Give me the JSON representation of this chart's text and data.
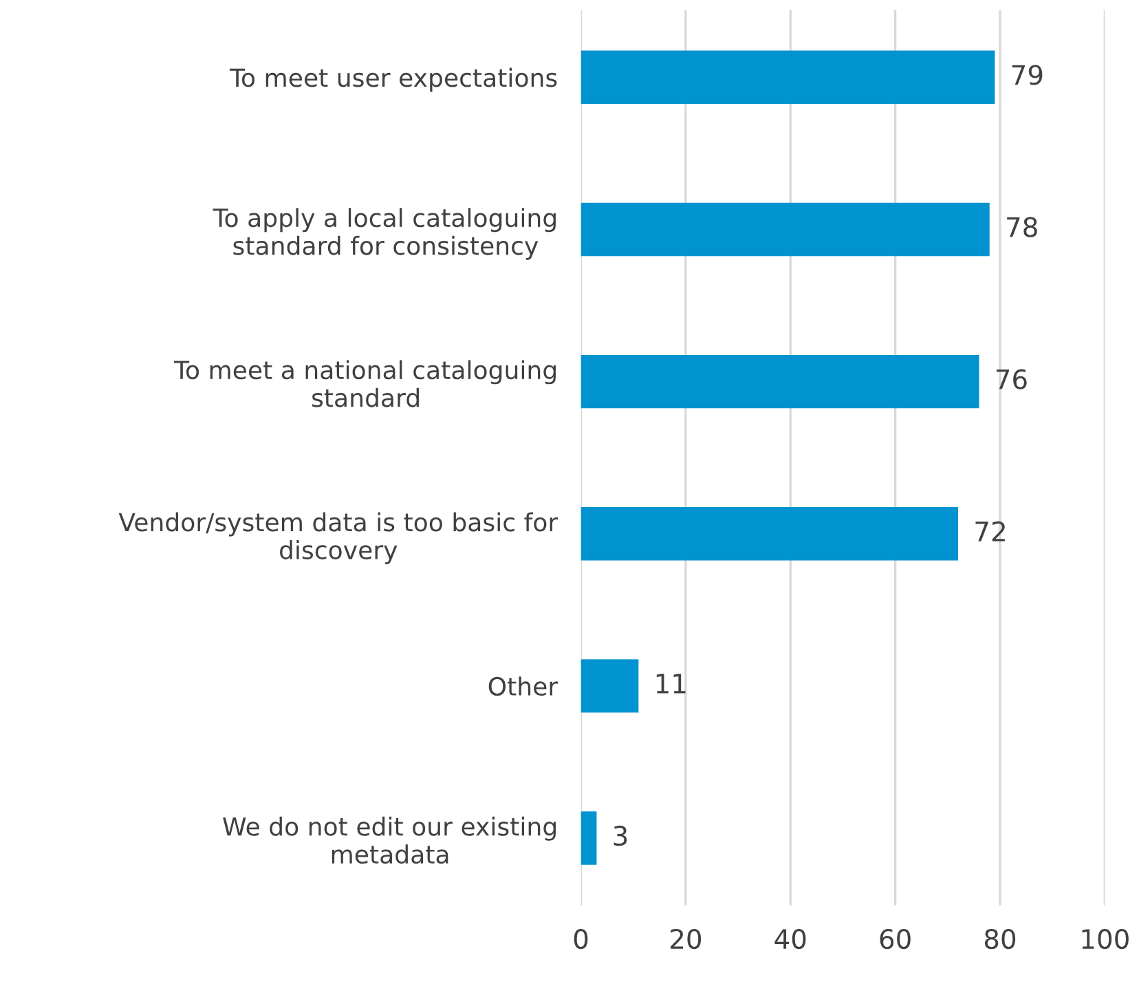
{
  "chart_data": {
    "type": "bar",
    "orientation": "horizontal",
    "categories": [
      "To meet user expectations",
      "To apply a local cataloguing\nstandard for consistency",
      "To meet a national cataloguing\nstandard",
      "Vendor/system data is too basic for\ndiscovery",
      "Other",
      "We do not edit our existing\nmetadata"
    ],
    "values": [
      79,
      78,
      76,
      72,
      11,
      3
    ],
    "color": "#0093d0",
    "xlim": [
      0,
      100
    ],
    "xticks": [
      0,
      20,
      40,
      60,
      80,
      100
    ],
    "grid": "x",
    "data_labels": true,
    "legend": false
  }
}
